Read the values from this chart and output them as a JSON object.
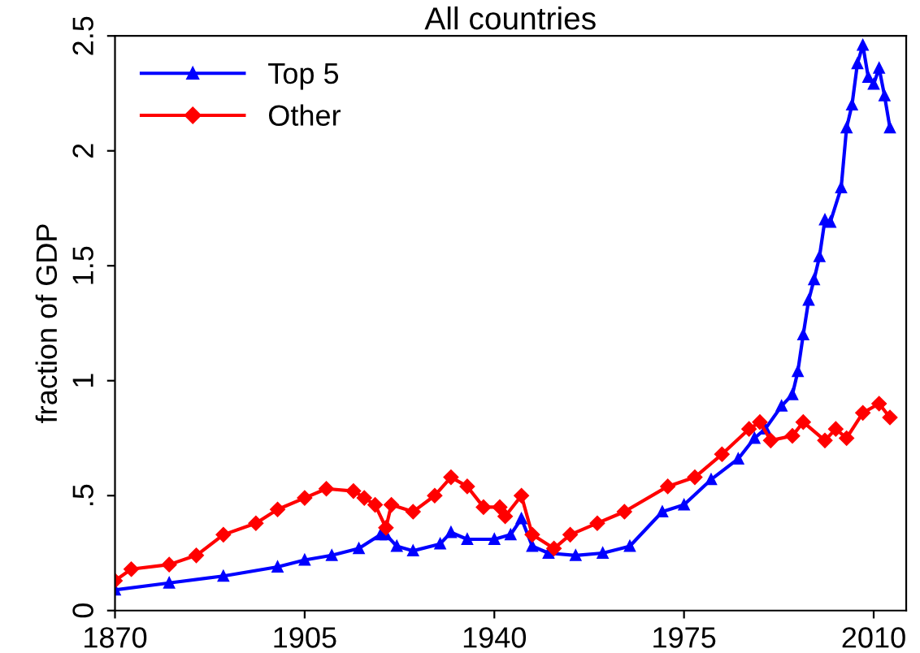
{
  "chart_data": {
    "type": "line",
    "title": "All countries",
    "ylabel": "fraction of GDP",
    "xlim": [
      1870,
      2016
    ],
    "xticks": [
      1870,
      1905,
      1940,
      1975,
      2010
    ],
    "ylim": [
      0,
      2.5
    ],
    "yticks": [
      0,
      {
        "value": 0.5,
        "label": ".5"
      },
      1,
      1.5,
      2,
      2.5
    ],
    "grid": false,
    "legend": "top left",
    "series": [
      {
        "name": "Top 5",
        "color": "#0000ff",
        "marker": "triangle",
        "x": [
          1870,
          1880,
          1890,
          1900,
          1905,
          1910,
          1915,
          1919,
          1920,
          1922,
          1925,
          1930,
          1932,
          1935,
          1940,
          1943,
          1945,
          1947,
          1950,
          1955,
          1960,
          1965,
          1971,
          1975,
          1980,
          1985,
          1988,
          1990,
          1993,
          1995,
          1996,
          1997,
          1998,
          1999,
          2000,
          2001,
          2002,
          2004,
          2005,
          2006,
          2007,
          2008,
          2009,
          2010,
          2011,
          2012,
          2013
        ],
        "values": [
          0.09,
          0.12,
          0.15,
          0.19,
          0.22,
          0.24,
          0.27,
          0.33,
          0.33,
          0.28,
          0.26,
          0.29,
          0.34,
          0.31,
          0.31,
          0.33,
          0.4,
          0.28,
          0.25,
          0.24,
          0.25,
          0.28,
          0.43,
          0.46,
          0.57,
          0.66,
          0.75,
          0.79,
          0.89,
          0.94,
          1.04,
          1.2,
          1.35,
          1.44,
          1.54,
          1.7,
          1.69,
          1.84,
          2.1,
          2.2,
          2.38,
          2.46,
          2.32,
          2.29,
          2.36,
          2.24,
          2.1
        ]
      },
      {
        "name": "Other",
        "color": "#ff0000",
        "marker": "diamond",
        "x": [
          1870,
          1873,
          1880,
          1885,
          1890,
          1896,
          1900,
          1905,
          1909,
          1914,
          1916,
          1918,
          1920,
          1921,
          1925,
          1929,
          1932,
          1935,
          1938,
          1941,
          1942,
          1945,
          1947,
          1951,
          1954,
          1959,
          1964,
          1972,
          1977,
          1982,
          1987,
          1989,
          1991,
          1995,
          1997,
          2001,
          2003,
          2005,
          2008,
          2011,
          2013
        ],
        "values": [
          0.13,
          0.18,
          0.2,
          0.24,
          0.33,
          0.38,
          0.44,
          0.49,
          0.53,
          0.52,
          0.49,
          0.46,
          0.36,
          0.46,
          0.43,
          0.5,
          0.58,
          0.54,
          0.45,
          0.45,
          0.41,
          0.5,
          0.33,
          0.27,
          0.33,
          0.38,
          0.43,
          0.54,
          0.58,
          0.68,
          0.79,
          0.82,
          0.74,
          0.76,
          0.82,
          0.74,
          0.79,
          0.75,
          0.86,
          0.9,
          0.84
        ]
      }
    ]
  }
}
